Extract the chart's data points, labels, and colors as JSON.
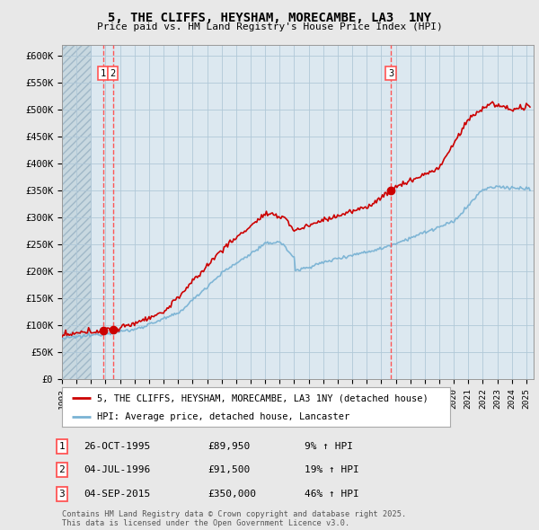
{
  "title": "5, THE CLIFFS, HEYSHAM, MORECAMBE, LA3  1NY",
  "subtitle": "Price paid vs. HM Land Registry's House Price Index (HPI)",
  "ylim": [
    0,
    620000
  ],
  "yticks": [
    0,
    50000,
    100000,
    150000,
    200000,
    250000,
    300000,
    350000,
    400000,
    450000,
    500000,
    550000,
    600000
  ],
  "ytick_labels": [
    "£0",
    "£50K",
    "£100K",
    "£150K",
    "£200K",
    "£250K",
    "£300K",
    "£350K",
    "£400K",
    "£450K",
    "£500K",
    "£550K",
    "£600K"
  ],
  "xlim_start": 1993.0,
  "xlim_end": 2025.5,
  "hpi_color": "#7ab3d4",
  "price_color": "#cc0000",
  "vline_color": "#ff5555",
  "marker_color": "#cc0000",
  "background_color": "#e8e8e8",
  "plot_bg_color": "#dce8f0",
  "grid_color": "#b0c8d8",
  "hatch_color": "#c8d8e0",
  "transactions": [
    {
      "date_num": 1995.82,
      "price": 89950,
      "label": "1"
    },
    {
      "date_num": 1996.51,
      "price": 91500,
      "label": "2"
    },
    {
      "date_num": 2015.67,
      "price": 350000,
      "label": "3"
    }
  ],
  "legend_line1": "5, THE CLIFFS, HEYSHAM, MORECAMBE, LA3 1NY (detached house)",
  "legend_line2": "HPI: Average price, detached house, Lancaster",
  "table_rows": [
    {
      "num": "1",
      "date": "26-OCT-1995",
      "price": "£89,950",
      "change": "9% ↑ HPI"
    },
    {
      "num": "2",
      "date": "04-JUL-1996",
      "price": "£91,500",
      "change": "19% ↑ HPI"
    },
    {
      "num": "3",
      "date": "04-SEP-2015",
      "price": "£350,000",
      "change": "46% ↑ HPI"
    }
  ],
  "footer": "Contains HM Land Registry data © Crown copyright and database right 2025.\nThis data is licensed under the Open Government Licence v3.0."
}
